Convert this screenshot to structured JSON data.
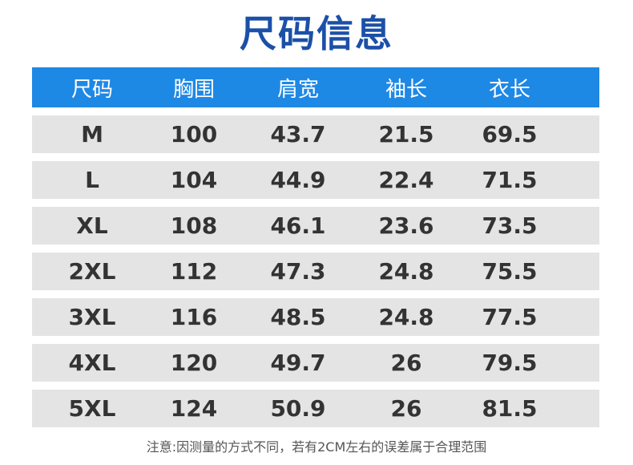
{
  "header": {
    "title": "尺码信息"
  },
  "table": {
    "columns": [
      "尺码",
      "胸围",
      "肩宽",
      "袖长",
      "衣长"
    ],
    "rows": [
      [
        "M",
        "100",
        "43.7",
        "21.5",
        "69.5"
      ],
      [
        "L",
        "104",
        "44.9",
        "22.4",
        "71.5"
      ],
      [
        "XL",
        "108",
        "46.1",
        "23.6",
        "73.5"
      ],
      [
        "2XL",
        "112",
        "47.3",
        "24.8",
        "75.5"
      ],
      [
        "3XL",
        "116",
        "48.5",
        "24.8",
        "77.5"
      ],
      [
        "4XL",
        "120",
        "49.7",
        "26",
        "79.5"
      ],
      [
        "5XL",
        "124",
        "50.9",
        "26",
        "81.5"
      ]
    ]
  },
  "footer": {
    "note": "注意:因测量的方式不同，若有2CM左右的误差属于合理范围"
  }
}
